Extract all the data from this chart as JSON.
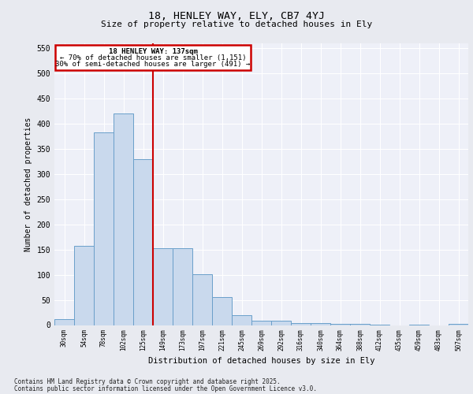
{
  "title1": "18, HENLEY WAY, ELY, CB7 4YJ",
  "title2": "Size of property relative to detached houses in Ely",
  "xlabel": "Distribution of detached houses by size in Ely",
  "ylabel": "Number of detached properties",
  "bar_labels": [
    "30sqm",
    "54sqm",
    "78sqm",
    "102sqm",
    "125sqm",
    "149sqm",
    "173sqm",
    "197sqm",
    "221sqm",
    "245sqm",
    "269sqm",
    "292sqm",
    "316sqm",
    "340sqm",
    "364sqm",
    "388sqm",
    "412sqm",
    "435sqm",
    "459sqm",
    "483sqm",
    "507sqm"
  ],
  "bar_values": [
    12,
    157,
    383,
    421,
    329,
    152,
    153,
    101,
    55,
    19,
    9,
    9,
    4,
    4,
    2,
    2,
    1,
    0,
    1,
    0,
    2
  ],
  "bar_color": "#c9d9ed",
  "bar_edge_color": "#6a9fca",
  "vline_color": "#cc0000",
  "annotation_title": "18 HENLEY WAY: 137sqm",
  "annotation_line1": "← 70% of detached houses are smaller (1,151)",
  "annotation_line2": "30% of semi-detached houses are larger (491) →",
  "annotation_box_edgecolor": "#cc0000",
  "ylim": [
    0,
    560
  ],
  "yticks": [
    0,
    50,
    100,
    150,
    200,
    250,
    300,
    350,
    400,
    450,
    500,
    550
  ],
  "bg_color": "#e8eaf0",
  "plot_bg_color": "#eef0f8",
  "footer1": "Contains HM Land Registry data © Crown copyright and database right 2025.",
  "footer2": "Contains public sector information licensed under the Open Government Licence v3.0."
}
